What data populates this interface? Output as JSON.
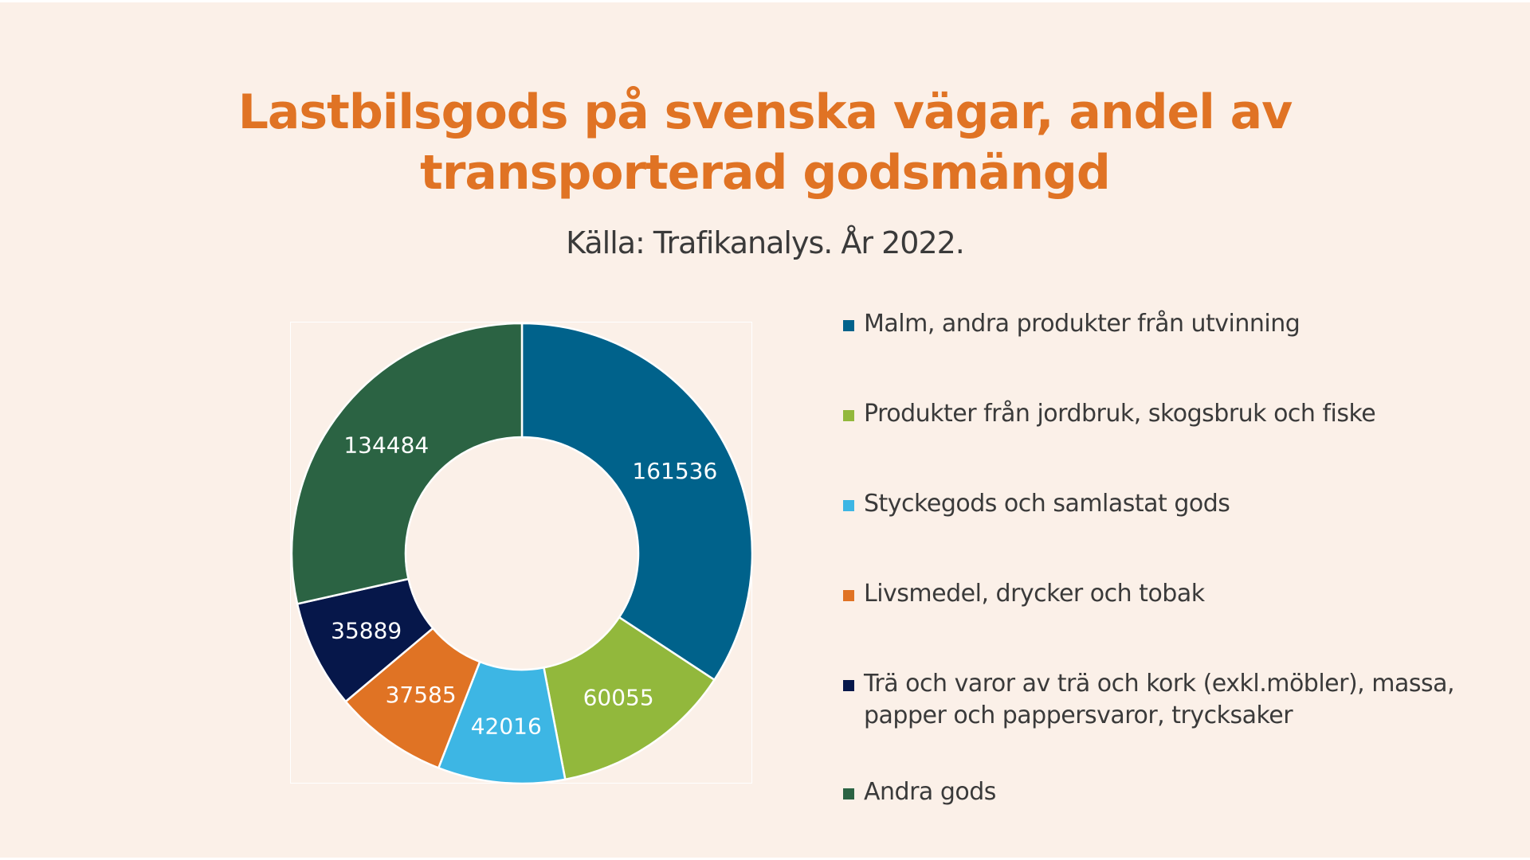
{
  "title_line1": "Lastbilsgods på svenska vägar, andel av",
  "title_line2": "transporterad godsmängd",
  "subtitle": "Källa: Trafikanalys. År 2022.",
  "chart_data": {
    "type": "pie",
    "donut": true,
    "title": "Lastbilsgods på svenska vägar, andel av transporterad godsmängd",
    "subtitle": "Källa: Trafikanalys. År 2022.",
    "legend_position": "right",
    "slices": [
      {
        "label": "Malm, andra produkter från utvinning",
        "value": 161536,
        "color": "#00628b"
      },
      {
        "label": "Produkter från jordbruk, skogsbruk och fiske",
        "value": 60055,
        "color": "#92b83c"
      },
      {
        "label": "Styckegods och samlastat gods",
        "value": 42016,
        "color": "#3db6e4"
      },
      {
        "label": "Livsmedel, drycker och tobak",
        "value": 37585,
        "color": "#e07324"
      },
      {
        "label": "Trä och varor av trä och kork (exkl.möbler), massa, papper och pappersvaror, trycksaker",
        "value": 35889,
        "color": "#06174a"
      },
      {
        "label": "Andra gods",
        "value": 134484,
        "color": "#2b6343"
      }
    ]
  }
}
